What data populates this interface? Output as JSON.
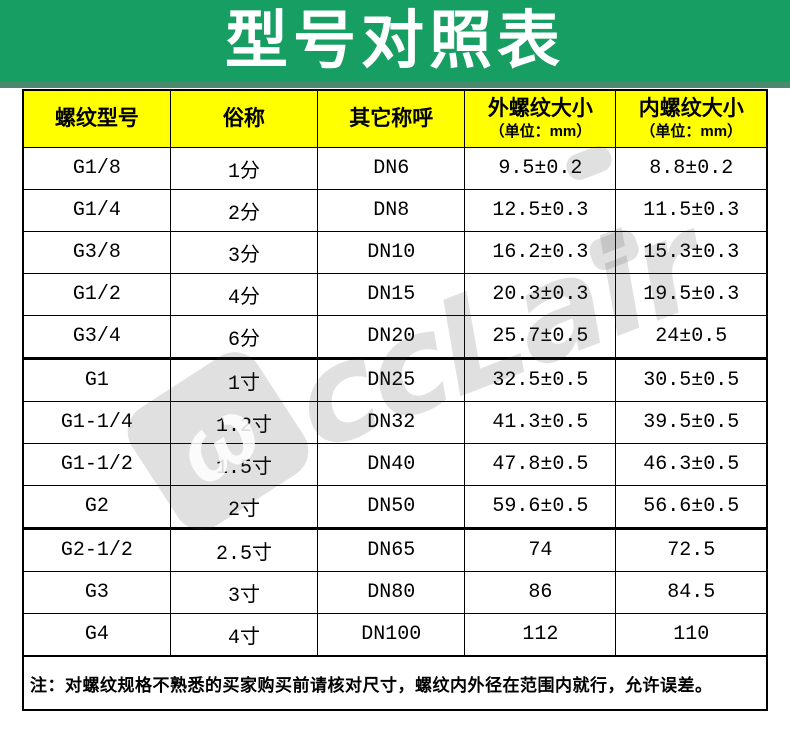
{
  "banner": {
    "title": "型号对照表"
  },
  "colors": {
    "banner_green": "#179e63",
    "banner_edge": "#4b8a6e",
    "header_yellow": "#ffff00",
    "border_black": "#000000"
  },
  "table": {
    "columns": [
      {
        "label": "螺纹型号",
        "unit": ""
      },
      {
        "label": "俗称",
        "unit": ""
      },
      {
        "label": "其它称呼",
        "unit": ""
      },
      {
        "label": "外螺纹大小",
        "unit": "（单位：mm）"
      },
      {
        "label": "内螺纹大小",
        "unit": "（单位：mm）"
      }
    ]
  },
  "chart_data": {
    "type": "table",
    "title": "型号对照表",
    "columns": [
      "螺纹型号",
      "俗称",
      "其它称呼",
      "外螺纹大小（单位：mm）",
      "内螺纹大小（单位：mm）"
    ],
    "rows": [
      [
        "G1/8",
        "1分",
        "DN6",
        "9.5±0.2",
        "8.8±0.2"
      ],
      [
        "G1/4",
        "2分",
        "DN8",
        "12.5±0.3",
        "11.5±0.3"
      ],
      [
        "G3/8",
        "3分",
        "DN10",
        "16.2±0.3",
        "15.3±0.3"
      ],
      [
        "G1/2",
        "4分",
        "DN15",
        "20.3±0.3",
        "19.5±0.3"
      ],
      [
        "G3/4",
        "6分",
        "DN20",
        "25.7±0.5",
        "24±0.5"
      ],
      [
        "G1",
        "1寸",
        "DN25",
        "32.5±0.5",
        "30.5±0.5"
      ],
      [
        "G1-1/4",
        "1.2寸",
        "DN32",
        "41.3±0.5",
        "39.5±0.5"
      ],
      [
        "G1-1/2",
        "1.5寸",
        "DN40",
        "47.8±0.5",
        "46.3±0.5"
      ],
      [
        "G2",
        "2寸",
        "DN50",
        "59.6±0.5",
        "56.6±0.5"
      ],
      [
        "G2-1/2",
        "2.5寸",
        "DN65",
        "74",
        "72.5"
      ],
      [
        "G3",
        "3寸",
        "DN80",
        "86",
        "84.5"
      ],
      [
        "G4",
        "4寸",
        "DN100",
        "112",
        "110"
      ]
    ],
    "note": "注：对螺纹规格不熟悉的买家购买前请核对尺寸，螺纹内外径在范围内就行，允许误差。"
  },
  "note": "注：对螺纹规格不熟悉的买家购买前请核对尺寸，螺纹内外径在范围内就行，允许误差。",
  "watermark": {
    "text": "ccLair",
    "logo_glyph": "ω"
  }
}
